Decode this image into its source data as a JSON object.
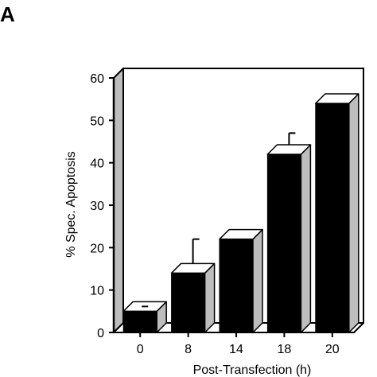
{
  "panel_label": "A",
  "chart_data": {
    "type": "bar",
    "title": "",
    "xlabel": "Post-Transfection (h)",
    "ylabel": "% Spec. Apoptosis",
    "categories": [
      "0",
      "8",
      "14",
      "18",
      "20"
    ],
    "values": [
      5,
      14,
      22,
      42,
      54
    ],
    "errors": [
      0,
      8,
      2,
      5,
      2
    ],
    "ylim": [
      0,
      60
    ],
    "yticks": [
      "0",
      "10",
      "20",
      "30",
      "40",
      "50",
      "60"
    ],
    "grid": false,
    "bar_style": "3d",
    "colors": {
      "bar": "#000000",
      "side_wall": "#bdbdbd",
      "bar_side": "#bdbdbd"
    }
  }
}
